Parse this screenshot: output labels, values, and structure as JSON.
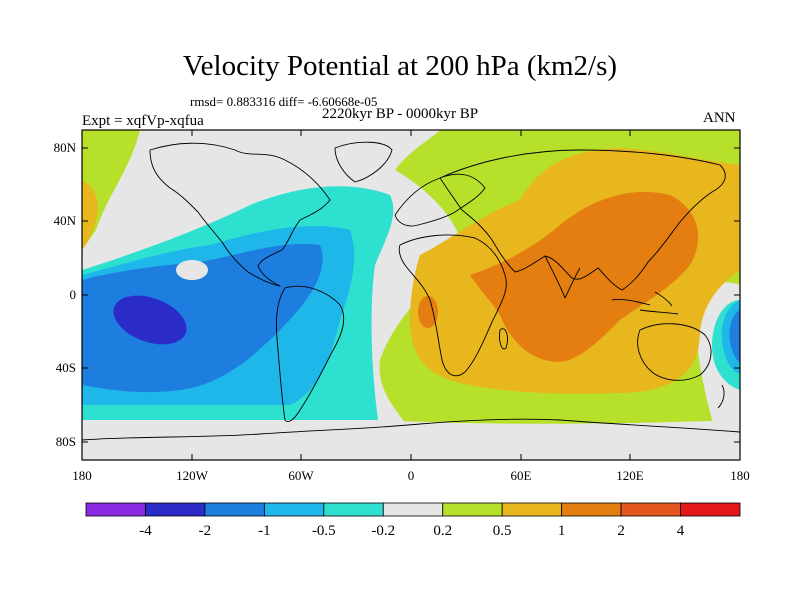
{
  "title": "Velocity Potential at 200 hPa (km2/s)",
  "stats_text": "rmsd= 0.883316 diff= -6.60668e-05",
  "experiment_text": "Expt = xqfVp-xqfua",
  "period_text": "2220kyr BP - 0000kyr BP",
  "season_text": "ANN",
  "lat_ticks": [
    "80N",
    "40N",
    "0",
    "40S",
    "80S"
  ],
  "lon_ticks": [
    "180",
    "120W",
    "60W",
    "0",
    "60E",
    "120E",
    "180"
  ],
  "colorbar": {
    "labels": [
      "-4",
      "-2",
      "-1",
      "-0.5",
      "-0.2",
      "0.2",
      "0.5",
      "1",
      "2",
      "4"
    ],
    "colors": [
      "#8a2be2",
      "#2b2bc8",
      "#1e7ee0",
      "#1fb6ea",
      "#2ee0cf",
      "#e6e6e6",
      "#b6e02a",
      "#e8b71e",
      "#e47e10",
      "#e5561e",
      "#e31818"
    ]
  }
}
